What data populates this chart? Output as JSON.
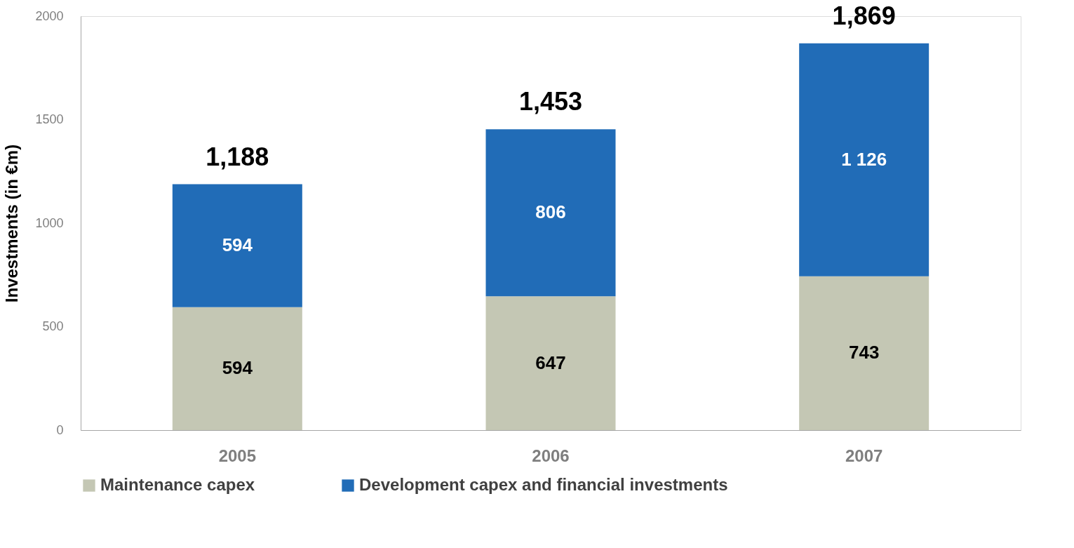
{
  "chart_data": {
    "type": "bar",
    "stacked": true,
    "ylabel": "Investments (in €m)",
    "categories": [
      "2005",
      "2006",
      "2007"
    ],
    "series": [
      {
        "name": "Maintenance capex",
        "color": "#c4c7b4",
        "values": [
          594,
          647,
          743
        ],
        "value_labels": [
          "594",
          "647",
          "743"
        ]
      },
      {
        "name": "Development capex and financial investments",
        "color": "#216cb7",
        "values": [
          594,
          806,
          1126
        ],
        "value_labels": [
          "594",
          "806",
          "1 126"
        ]
      }
    ],
    "totals": [
      "1,188",
      "1,453",
      "1,869"
    ],
    "ylim": [
      0,
      2000
    ],
    "yticks": [
      0,
      500,
      1000,
      1500,
      2000
    ],
    "grid": false,
    "legend": "bottom"
  }
}
